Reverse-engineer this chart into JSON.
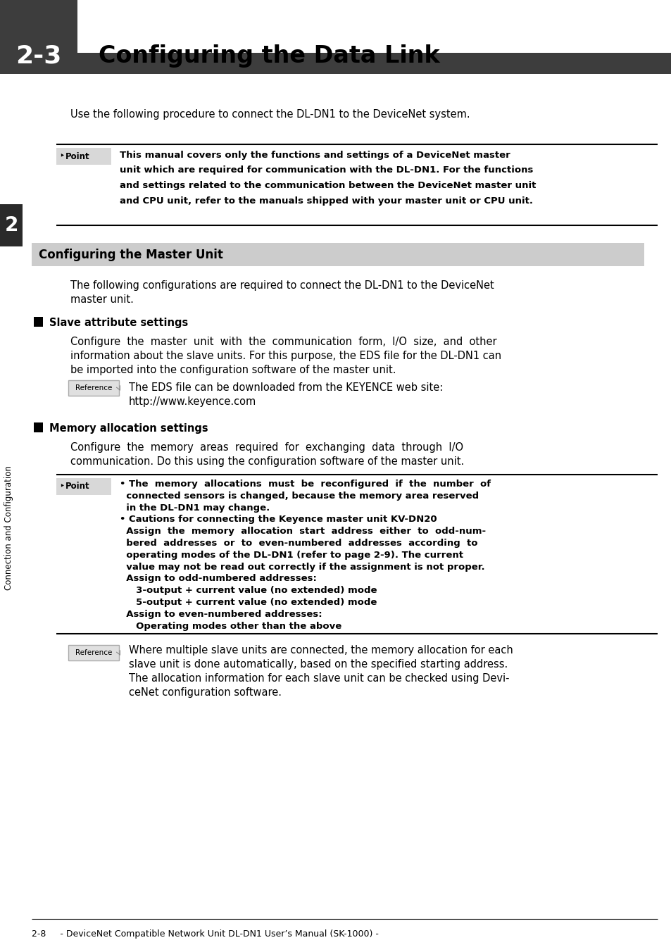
{
  "page_bg": "#ffffff",
  "header_box_color": "#3d3d3d",
  "header_number": "2-3",
  "header_title": "Configuring the Data Link",
  "sidebar_color": "#2a2a2a",
  "sidebar_text": "Connection and Configuration",
  "sidebar_number": "2",
  "section_header_bg": "#cccccc",
  "footer_text": "2-8     - DeviceNet Compatible Network Unit DL-DN1 User’s Manual (SK-1000) -",
  "intro_text": "Use the following procedure to connect the DL-DN1 to the DeviceNet system.",
  "point1_lines": [
    "This manual covers only the functions and settings of a DeviceNet master",
    "unit which are required for communication with the DL-DN1. For the functions",
    "and settings related to the communication between the DeviceNet master unit",
    "and CPU unit, refer to the manuals shipped with your master unit or CPU unit."
  ],
  "section_title": "Configuring the Master Unit",
  "section_intro_lines": [
    "The following configurations are required to connect the DL-DN1 to the DeviceNet",
    "master unit."
  ],
  "subsection1_title": "Slave attribute settings",
  "subsection1_lines": [
    "Configure  the  master  unit  with  the  communication  form,  I/O  size,  and  other",
    "information about the slave units. For this purpose, the EDS file for the DL-DN1 can",
    "be imported into the configuration software of the master unit."
  ],
  "reference1_lines": [
    "The EDS file can be downloaded from the KEYENCE web site:",
    "http://www.keyence.com"
  ],
  "subsection2_title": "Memory allocation settings",
  "subsection2_lines": [
    "Configure  the  memory  areas  required  for  exchanging  data  through  I/O",
    "communication. Do this using the configuration software of the master unit."
  ],
  "point2_lines": [
    "• The  memory  allocations  must  be  reconfigured  if  the  number  of",
    "  connected sensors is changed, because the memory area reserved",
    "  in the DL-DN1 may change.",
    "• Cautions for connecting the Keyence master unit KV-DN20",
    "  Assign  the  memory  allocation  start  address  either  to  odd-num-",
    "  bered  addresses  or  to  even-numbered  addresses  according  to",
    "  operating modes of the DL-DN1 (refer to page 2-9). The current",
    "  value may not be read out correctly if the assignment is not proper.",
    "  Assign to odd-numbered addresses:",
    "     3-output + current value (no extended) mode",
    "     5-output + current value (no extended) mode",
    "  Assign to even-numbered addresses:",
    "     Operating modes other than the above"
  ],
  "reference2_lines": [
    "Where multiple slave units are connected, the memory allocation for each",
    "slave unit is done automatically, based on the specified starting address.",
    "The allocation information for each slave unit can be checked using Devi-",
    "ceNet configuration software."
  ]
}
